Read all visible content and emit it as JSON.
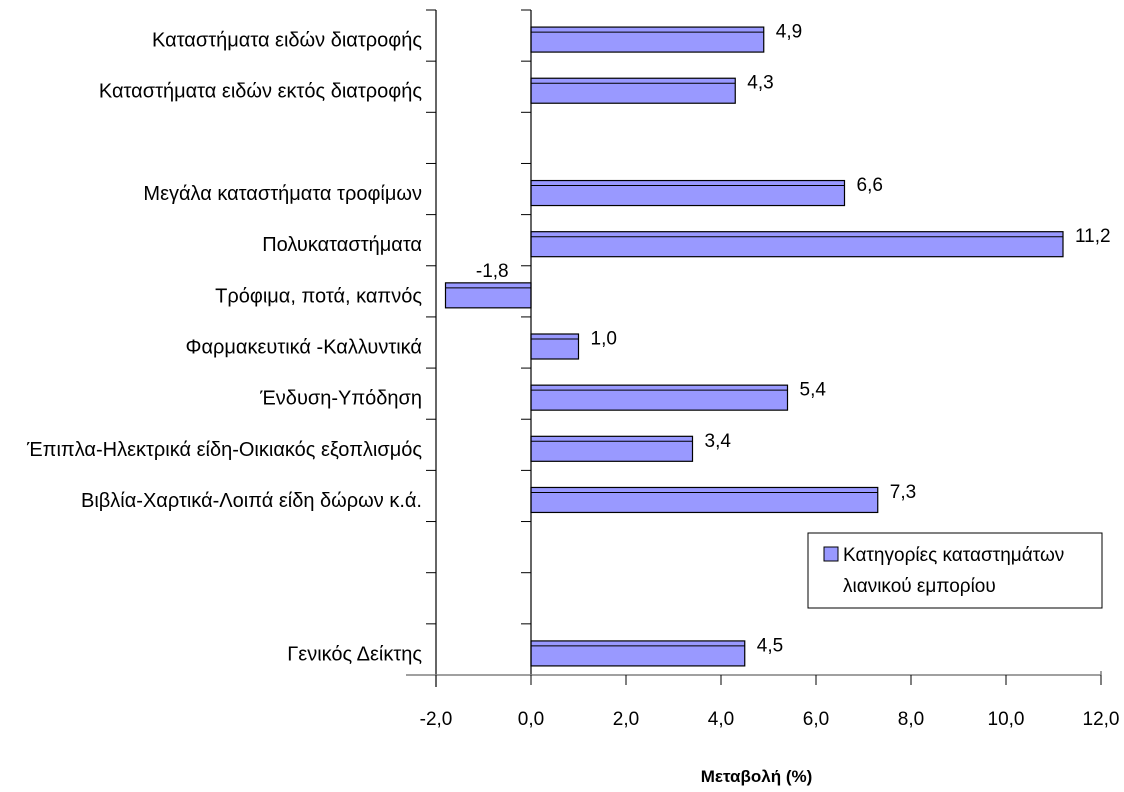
{
  "chart_data": {
    "type": "bar",
    "orientation": "horizontal",
    "title": "",
    "xlabel": "Μεταβολή (%)",
    "ylabel": "",
    "xlim": [
      -2,
      12
    ],
    "x_ticks": [
      -2,
      0,
      2,
      4,
      6,
      8,
      10,
      12
    ],
    "x_tick_labels": [
      "-2,0",
      "0,0",
      "2,0",
      "4,0",
      "6,0",
      "8,0",
      "10,0",
      "12,0"
    ],
    "grid": false,
    "legend_position": "bottom-right",
    "series": [
      {
        "name": "Κατηγορίες καταστημάτων λιανικού εμπορίου",
        "color": "#9999ff",
        "legend_lines": [
          "Κατηγορίες καταστημάτων",
          "λιανικού εμπορίου"
        ]
      }
    ],
    "rows": [
      {
        "category": "Καταστήματα ειδών διατροφής",
        "value": 4.9,
        "label": "4,9"
      },
      {
        "category": "Καταστήματα ειδών  εκτός διατροφής",
        "value": 4.3,
        "label": "4,3"
      },
      {
        "category": "",
        "value": null,
        "label": ""
      },
      {
        "category": "Μεγάλα καταστήματα τροφίμων",
        "value": 6.6,
        "label": "6,6"
      },
      {
        "category": "Πολυκαταστήματα",
        "value": 11.2,
        "label": "11,2"
      },
      {
        "category": "Τρόφιμα, ποτά, καπνός",
        "value": -1.8,
        "label": "-1,8"
      },
      {
        "category": "Φαρμακευτικά -Καλλυντικά",
        "value": 1.0,
        "label": "1,0"
      },
      {
        "category": "Ένδυση-Υπόδηση",
        "value": 5.4,
        "label": "5,4"
      },
      {
        "category": "Έπιπλα-Ηλεκτρικά είδη-Οικιακός εξοπλισμός",
        "value": 3.4,
        "label": "3,4"
      },
      {
        "category": "Βιβλία-Χαρτικά-Λοιπά είδη δώρων κ.ά.",
        "value": 7.3,
        "label": "7,3"
      },
      {
        "category": "",
        "value": null,
        "label": ""
      },
      {
        "category": "",
        "value": null,
        "label": ""
      },
      {
        "category": "Γενικός Δείκτης",
        "value": 4.5,
        "label": "4,5"
      }
    ]
  }
}
